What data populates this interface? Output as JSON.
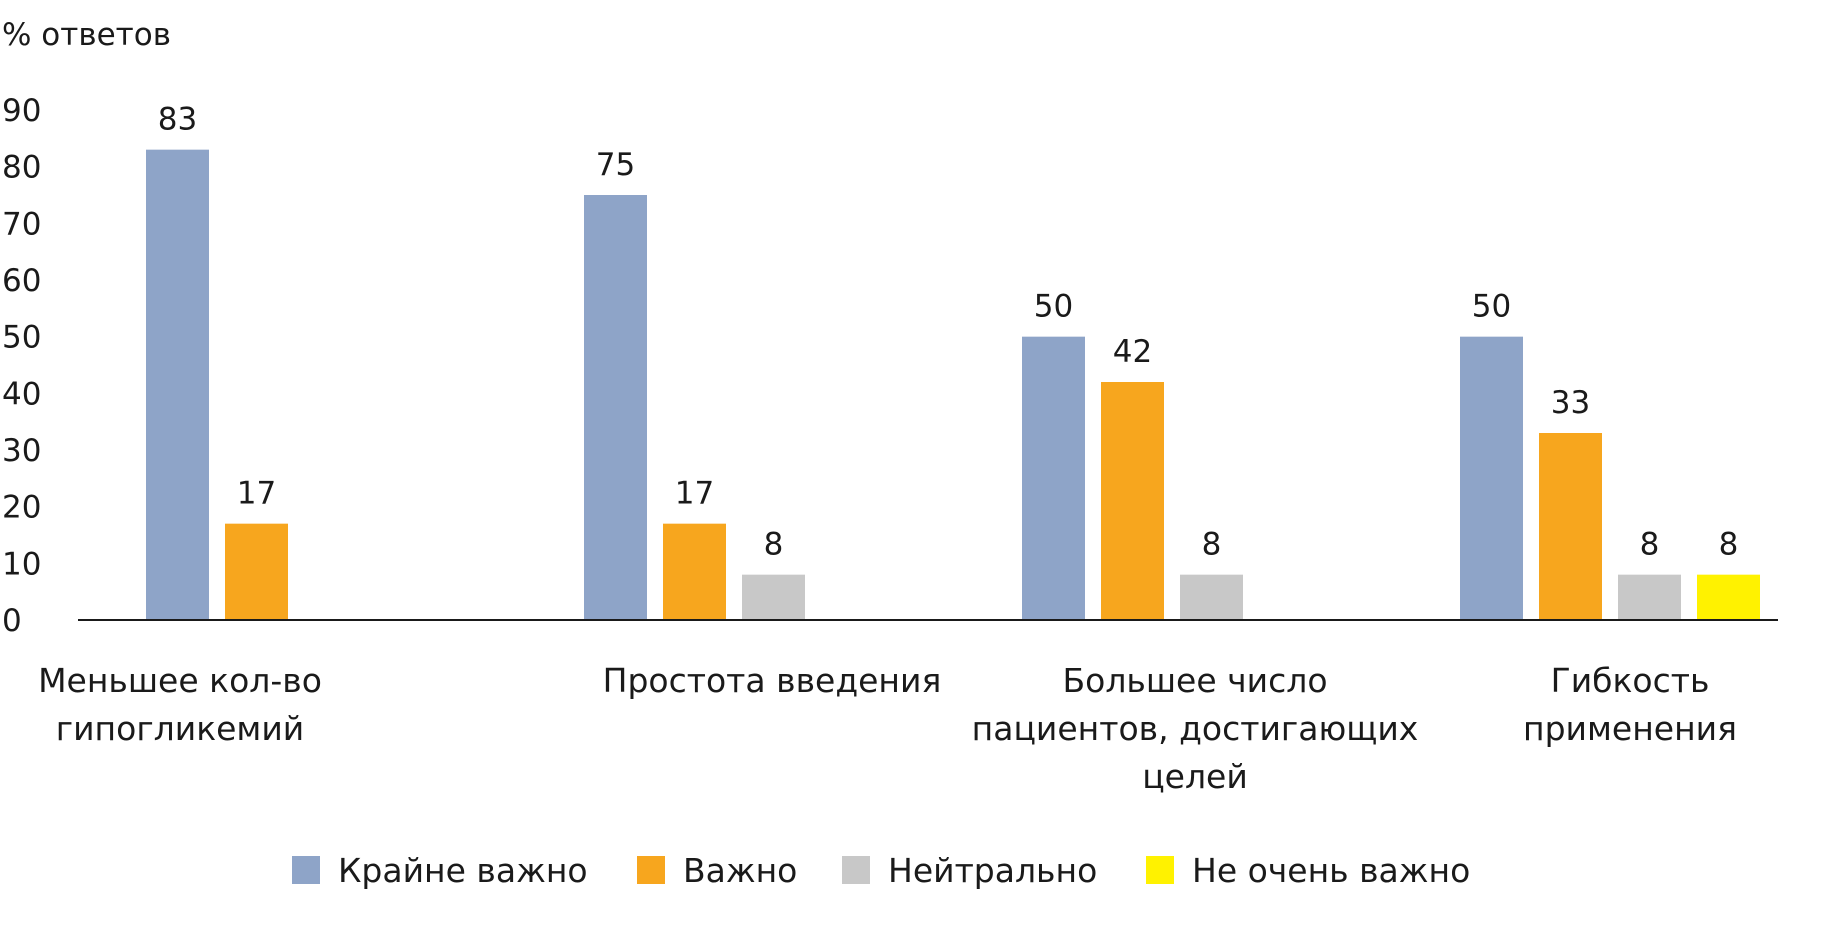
{
  "chart_data": {
    "type": "bar",
    "title": "",
    "xlabel": "",
    "ylabel": "% ответов",
    "ylim": [
      0,
      90
    ],
    "yticks": [
      0,
      10,
      20,
      30,
      40,
      50,
      60,
      70,
      80,
      90
    ],
    "grid": false,
    "legend_position": "bottom",
    "categories": [
      [
        "Меньшее кол-во",
        "гипогликемий"
      ],
      [
        "Простота введения"
      ],
      [
        "Большее число",
        "пациентов, достигающих",
        "целей"
      ],
      [
        "Гибкость",
        "применения"
      ]
    ],
    "series": [
      {
        "name": "Крайне важно",
        "color": "#8EA4C8",
        "values": [
          83,
          75,
          50,
          50
        ]
      },
      {
        "name": "Важно",
        "color": "#F7A61E",
        "values": [
          17,
          17,
          42,
          33
        ]
      },
      {
        "name": "Нейтрально",
        "color": "#C8C8C8",
        "values": [
          null,
          8,
          8,
          8
        ]
      },
      {
        "name": "Не очень важно",
        "color": "#FFF200",
        "values": [
          null,
          null,
          null,
          8
        ]
      }
    ]
  }
}
